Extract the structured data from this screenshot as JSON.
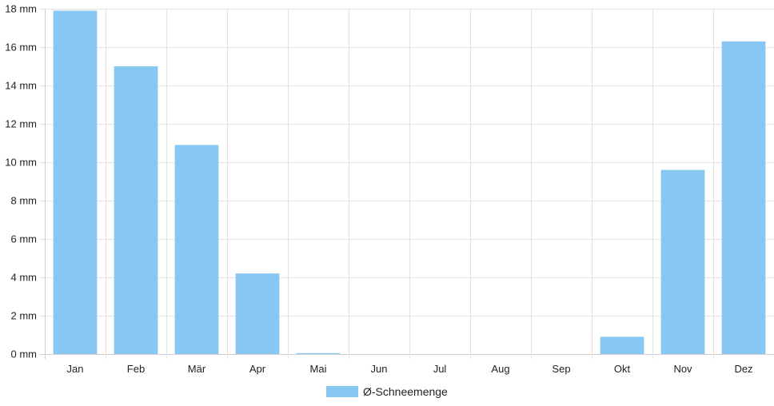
{
  "chart_data": {
    "type": "bar",
    "categories": [
      "Jan",
      "Feb",
      "Mär",
      "Apr",
      "Mai",
      "Jun",
      "Jul",
      "Aug",
      "Sep",
      "Okt",
      "Nov",
      "Dez"
    ],
    "series": [
      {
        "name": "Ø-Schneemenge",
        "values": [
          17.9,
          15.0,
          10.9,
          4.2,
          0.05,
          0,
          0,
          0,
          0,
          0.9,
          9.6,
          16.3
        ],
        "color": "#87c7f2"
      }
    ],
    "y_ticks": [
      "0 mm",
      "2 mm",
      "4 mm",
      "6 mm",
      "8 mm",
      "10 mm",
      "12 mm",
      "14 mm",
      "16 mm",
      "18 mm"
    ],
    "ylim": [
      0,
      18
    ],
    "y_unit": "mm",
    "grid": true,
    "legend_position": "bottom-center"
  }
}
